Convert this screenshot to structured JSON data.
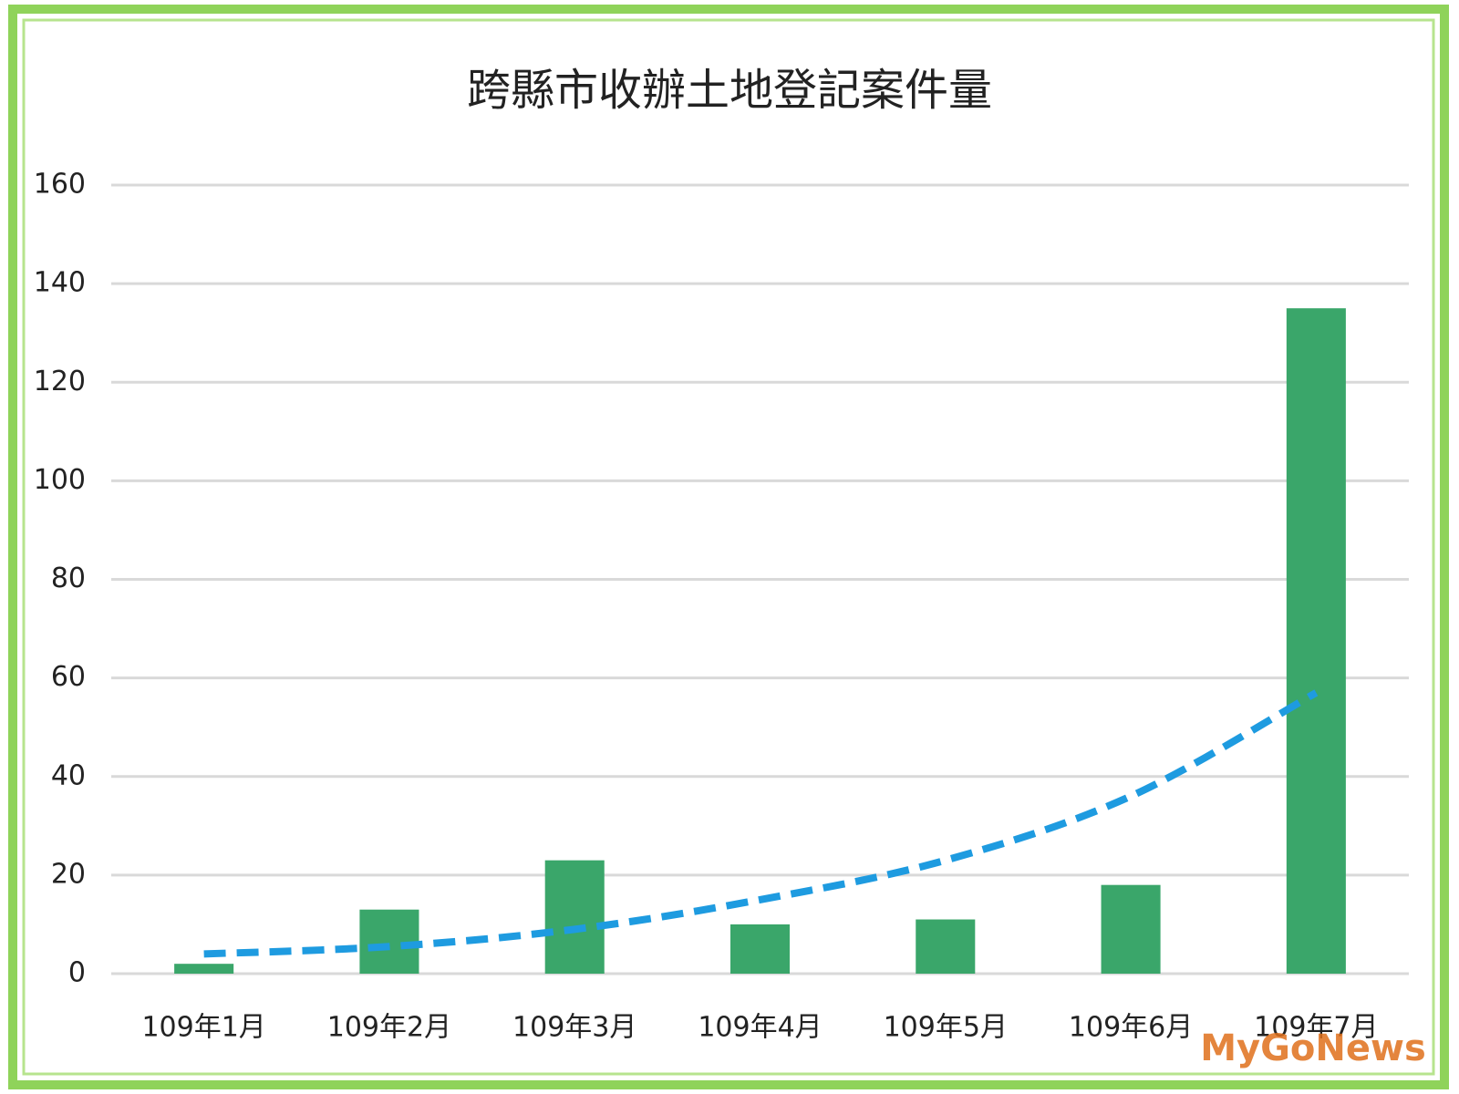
{
  "chart_data": {
    "type": "bar",
    "title": "跨縣市收辦土地登記案件量",
    "categories": [
      "109年1月",
      "109年2月",
      "109年3月",
      "109年4月",
      "109年5月",
      "109年6月",
      "109年7月"
    ],
    "values": [
      2,
      13,
      23,
      10,
      11,
      18,
      135
    ],
    "color": "#3aa66a",
    "trendline": {
      "values": [
        4,
        5.5,
        9,
        15,
        23,
        36,
        57
      ],
      "color": "#1e9be0",
      "dashed": true
    },
    "ylim": [
      0,
      160
    ],
    "yticks": [
      0,
      20,
      40,
      60,
      80,
      100,
      120,
      140,
      160
    ],
    "grid": true,
    "watermark": "MyGoNews"
  }
}
